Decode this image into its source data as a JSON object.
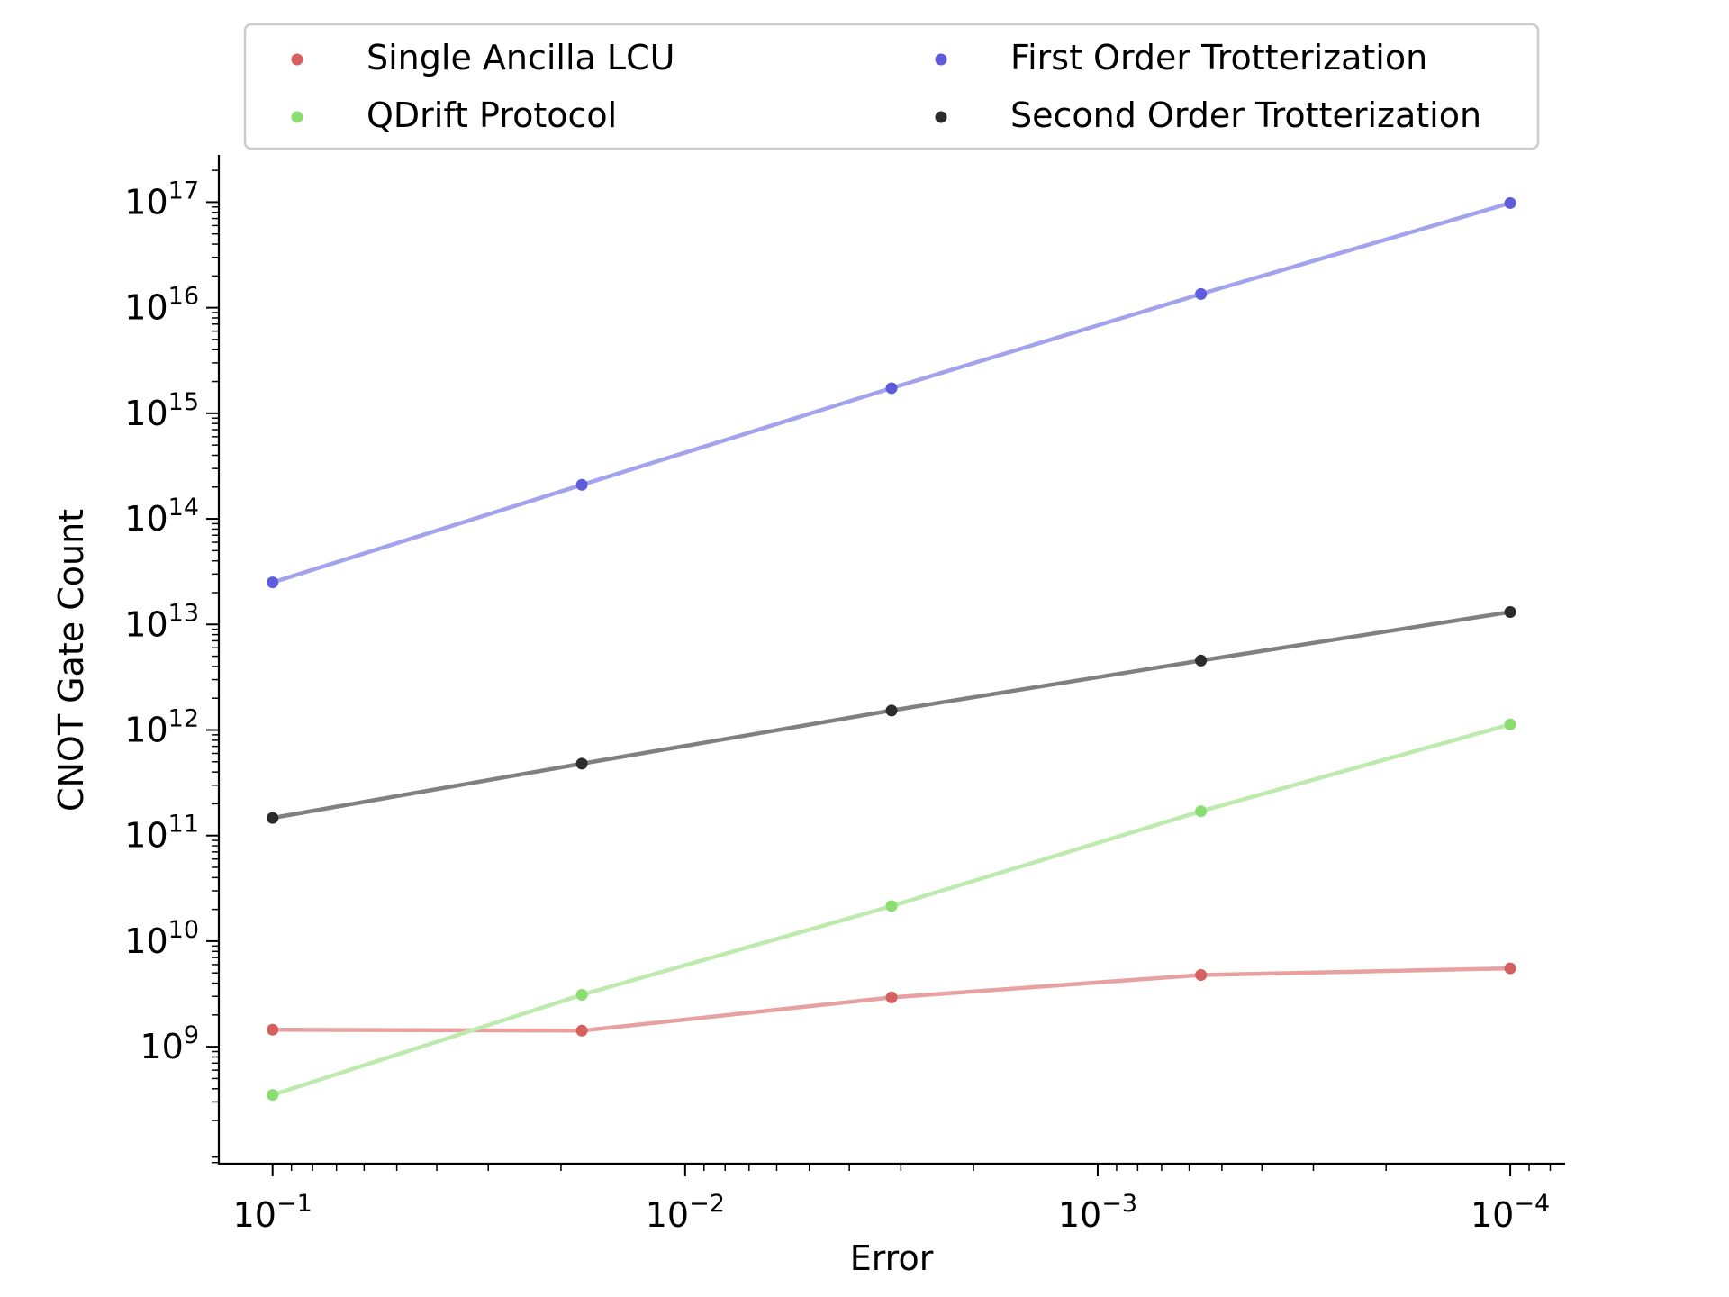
{
  "chart_data": {
    "type": "line",
    "title": "",
    "xlabel": "Error",
    "ylabel": "CNOT Gate Count",
    "x_scale": "log-reversed",
    "y_scale": "log",
    "x": [
      0.1,
      0.0178,
      0.00316,
      0.000562,
      0.0001
    ],
    "xlim": [
      0.135,
      7.4e-05
    ],
    "ylim": [
      78000000.0,
      2.8e+17
    ],
    "x_ticks": [
      {
        "value": 0.1,
        "label": "10",
        "exp": "−1"
      },
      {
        "value": 0.01,
        "label": "10",
        "exp": "−2"
      },
      {
        "value": 0.001,
        "label": "10",
        "exp": "−3"
      },
      {
        "value": 0.0001,
        "label": "10",
        "exp": "−4"
      }
    ],
    "y_ticks": [
      {
        "value": 1000000000.0,
        "label": "10",
        "exp": "9"
      },
      {
        "value": 10000000000.0,
        "label": "10",
        "exp": "10"
      },
      {
        "value": 100000000000.0,
        "label": "10",
        "exp": "11"
      },
      {
        "value": 1000000000000.0,
        "label": "10",
        "exp": "12"
      },
      {
        "value": 10000000000000.0,
        "label": "10",
        "exp": "13"
      },
      {
        "value": 100000000000000.0,
        "label": "10",
        "exp": "14"
      },
      {
        "value": 1000000000000000.0,
        "label": "10",
        "exp": "15"
      },
      {
        "value": 1e+16,
        "label": "10",
        "exp": "16"
      },
      {
        "value": 1e+17,
        "label": "10",
        "exp": "17"
      }
    ],
    "series": [
      {
        "name": "Single Ancilla LCU",
        "color": "#d65f5f",
        "line_color": "#e8a1a1",
        "values": [
          1450000000.0,
          1420000000.0,
          2930000000.0,
          4780000000.0,
          5530000000.0
        ]
      },
      {
        "name": "First Order Trotterization",
        "color": "#5e5cdc",
        "line_color": "#a3a2ec",
        "values": [
          25000000000000.0,
          210000000000000.0,
          1730000000000000.0,
          1.35e+16,
          9.8e+16
        ]
      },
      {
        "name": "QDrift Protocol",
        "color": "#8ade70",
        "line_color": "#bdebad",
        "values": [
          350000000.0,
          3100000000.0,
          21500000000.0,
          170000000000.0,
          1130000000000.0
        ]
      },
      {
        "name": "Second Order Trotterization",
        "color": "#2b2b2b",
        "line_color": "#808080",
        "values": [
          147000000000.0,
          480000000000.0,
          1530000000000.0,
          4550000000000.0,
          13100000000000.0
        ]
      }
    ],
    "legend": {
      "location": "upper center",
      "columns": 2,
      "order": [
        0,
        2,
        1,
        3
      ]
    },
    "grid": false
  }
}
